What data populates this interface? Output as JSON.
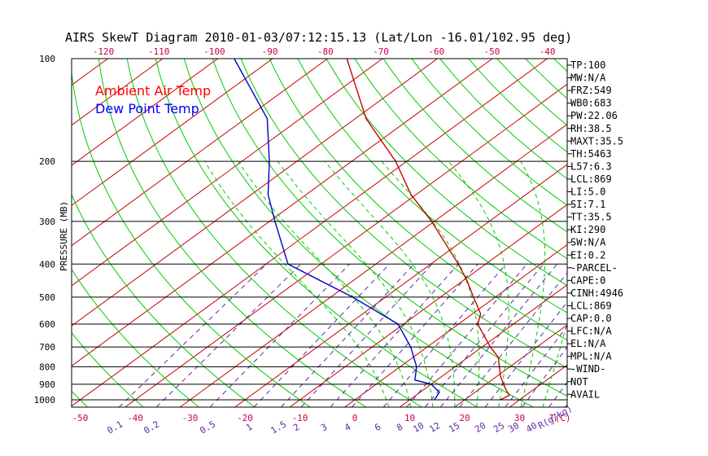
{
  "chart_data": {
    "type": "line",
    "title": "AIRS SkewT Diagram 2010-01-03/07:12:15.13 (Lat/Lon -16.01/102.95 deg)",
    "ylabel": "PRESSURE (MB)",
    "xlabel": "T(C)",
    "mixing_ratio_unit": "R(g/kg)",
    "y_scale": "log",
    "ylim": [
      1050,
      100
    ],
    "xlim_bottom": [
      -50,
      30
    ],
    "top_ticks": [
      "-120",
      "-110",
      "-100",
      "-90",
      "-80",
      "-70",
      "-60",
      "-50",
      "-40"
    ],
    "bottom_ticks": [
      "-50",
      "-40",
      "-30",
      "-20",
      "-10",
      "0",
      "10",
      "20",
      "30"
    ],
    "pressure_ticks": [
      "100",
      "200",
      "300",
      "400",
      "500",
      "600",
      "700",
      "800",
      "900",
      "1000"
    ],
    "mixing_ratio_labels": [
      "0.1",
      "0.2",
      "0.5",
      "1",
      "1.5",
      "2",
      "3",
      "4",
      "6",
      "8",
      "10",
      "12",
      "15",
      "20",
      "25",
      "30",
      "40"
    ],
    "legend": [
      {
        "label": "Ambient Air Temp",
        "color": "#ff0000"
      },
      {
        "label": "Dew Point Temp",
        "color": "#0000ff"
      }
    ],
    "series": [
      {
        "name": "Ambient Air Temp",
        "color": "#cc0000",
        "points": [
          {
            "p": 1000,
            "t": 26.5
          },
          {
            "p": 970,
            "t": 27
          },
          {
            "p": 925,
            "t": 24.5
          },
          {
            "p": 850,
            "t": 20.5
          },
          {
            "p": 750,
            "t": 15.5
          },
          {
            "p": 700,
            "t": 11.5
          },
          {
            "p": 600,
            "t": 3.5
          },
          {
            "p": 560,
            "t": 1.5
          },
          {
            "p": 500,
            "t": -4
          },
          {
            "p": 450,
            "t": -9
          },
          {
            "p": 400,
            "t": -15
          },
          {
            "p": 300,
            "t": -30.5
          },
          {
            "p": 250,
            "t": -41
          },
          {
            "p": 200,
            "t": -52
          },
          {
            "p": 150,
            "t": -68
          },
          {
            "p": 100,
            "t": -86.5
          }
        ]
      },
      {
        "name": "Dew Point Temp",
        "color": "#0000cc",
        "points": [
          {
            "p": 1000,
            "t": 14.5
          },
          {
            "p": 950,
            "t": 13.5
          },
          {
            "p": 900,
            "t": 10
          },
          {
            "p": 875,
            "t": 6
          },
          {
            "p": 800,
            "t": 3
          },
          {
            "p": 700,
            "t": -3
          },
          {
            "p": 600,
            "t": -11
          },
          {
            "p": 500,
            "t": -26
          },
          {
            "p": 400,
            "t": -46
          },
          {
            "p": 300,
            "t": -59
          },
          {
            "p": 250,
            "t": -67
          },
          {
            "p": 200,
            "t": -75
          },
          {
            "p": 150,
            "t": -86
          },
          {
            "p": 100,
            "t": -107
          }
        ]
      }
    ],
    "grid": true
  },
  "indices": [
    "TP:100",
    "MW:N/A",
    "FRZ:549",
    "WB0:683",
    "PW:22.06",
    "RH:38.5",
    "MAXT:35.5",
    "TH:5463",
    "L57:6.3",
    "LCL:869",
    "LI:5.0",
    "SI:7.1",
    "TT:35.5",
    "KI:290",
    "SW:N/A",
    "EI:0.2",
    "-PARCEL-",
    "CAPE:0",
    "CINH:4946",
    "LCL:869",
    "CAP:0.0",
    "LFC:N/A",
    "EL:N/A",
    "MPL:N/A",
    "-WIND-",
    "NOT",
    "AVAIL"
  ],
  "colors": {
    "isotherm": "#c80000",
    "dry_adiabat": "#00cc00",
    "moist_adiabat": "#00cc00",
    "mixing_ratio": "#5a2ca0",
    "text": "#000000",
    "axis_tick": "#c8004a"
  }
}
